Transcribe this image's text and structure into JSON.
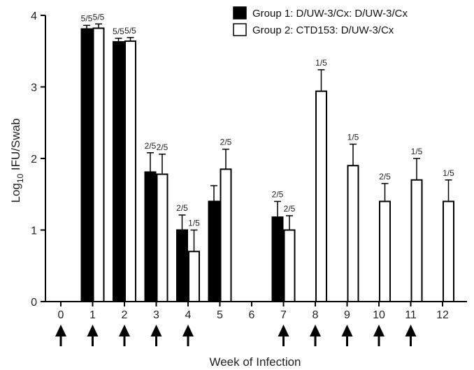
{
  "chart_data": {
    "type": "bar",
    "title": "",
    "xlabel": "Week of Infection",
    "ylabel_main": "Log",
    "ylabel_sub": "10",
    "ylabel_rest": " IFU/Swab",
    "ylim": [
      0,
      4
    ],
    "yticks": [
      0,
      1,
      2,
      3,
      4
    ],
    "categories": [
      "0",
      "1",
      "2",
      "3",
      "4",
      "5",
      "6",
      "7",
      "8",
      "9",
      "10",
      "11",
      "12"
    ],
    "grid": false,
    "legend_position": "top-right",
    "series": [
      {
        "name": "Group 1: D/UW-3/Cx: D/UW-3/Cx",
        "fill": "#000000",
        "values": [
          null,
          3.81,
          3.63,
          1.81,
          1.0,
          1.4,
          null,
          1.18,
          null,
          null,
          null,
          null,
          null
        ],
        "errors": [
          null,
          0.05,
          0.05,
          0.27,
          0.21,
          0.22,
          null,
          0.22,
          null,
          null,
          null,
          null,
          null
        ],
        "labels": [
          null,
          "5/5",
          "5/5",
          "2/5",
          "2/5",
          null,
          null,
          "2/5",
          null,
          null,
          null,
          null,
          null
        ]
      },
      {
        "name": "Group 2: CTD153: D/UW-3/Cx",
        "fill": "#ffffff",
        "values": [
          null,
          3.82,
          3.64,
          1.78,
          0.7,
          1.85,
          null,
          1.0,
          2.94,
          1.9,
          1.4,
          1.7,
          1.4
        ],
        "errors": [
          null,
          0.06,
          0.05,
          0.28,
          0.3,
          0.28,
          null,
          0.2,
          0.3,
          0.3,
          0.25,
          0.3,
          0.3
        ],
        "labels": [
          null,
          "5/5",
          "5/5",
          "2/5",
          "1/5",
          "2/5",
          null,
          "2/5",
          "1/5",
          "1/5",
          "2/5",
          "1/5",
          "1/5"
        ]
      }
    ],
    "arrow_weeks": [
      "0",
      "1",
      "2",
      "3",
      "4",
      "7",
      "8",
      "9",
      "10",
      "11"
    ]
  }
}
